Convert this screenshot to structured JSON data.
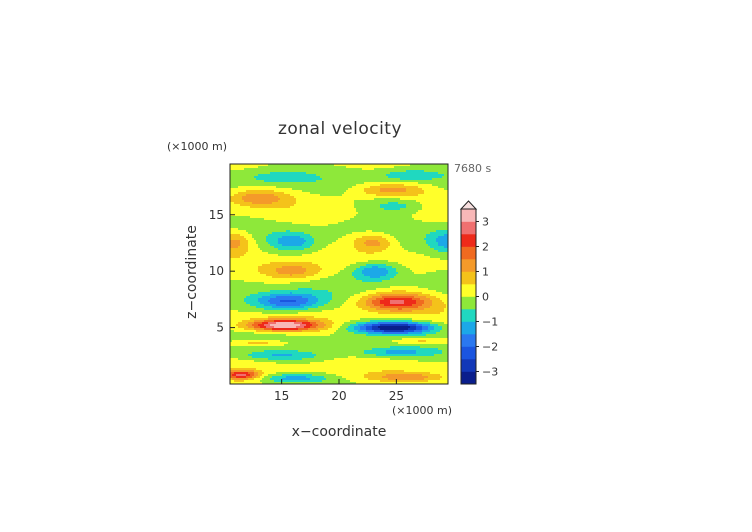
{
  "chart_data": {
    "type": "heatmap",
    "title": "zonal velocity",
    "xlabel": "x−coordinate",
    "ylabel": "z−coordinate",
    "x_unit_label": "(×1000 m)",
    "y_unit_label": "(×1000 m)",
    "time_label": "7680 s",
    "xlim": [
      10.5,
      29.5
    ],
    "ylim": [
      0,
      19.5
    ],
    "xticks": [
      15,
      20,
      25
    ],
    "yticks": [
      5,
      10,
      15
    ],
    "colorbar": {
      "ticks": [
        "3",
        "2",
        "1",
        "0",
        "−1",
        "−2",
        "−3"
      ],
      "range": [
        -3.5,
        3.5
      ],
      "extend": "max",
      "levels": [
        {
          "lo": -3.5,
          "hi": -3.0,
          "color": "#0a1e8c"
        },
        {
          "lo": -3.0,
          "hi": -2.5,
          "color": "#1238b8"
        },
        {
          "lo": -2.5,
          "hi": -2.0,
          "color": "#1a55e0"
        },
        {
          "lo": -2.0,
          "hi": -1.5,
          "color": "#2a78f0"
        },
        {
          "lo": -1.5,
          "hi": -1.0,
          "color": "#1ca8e8"
        },
        {
          "lo": -1.0,
          "hi": -0.5,
          "color": "#20d8c0"
        },
        {
          "lo": -0.5,
          "hi": 0.0,
          "color": "#8ee83a"
        },
        {
          "lo": 0.0,
          "hi": 0.5,
          "color": "#ffff2a"
        },
        {
          "lo": 0.5,
          "hi": 1.0,
          "color": "#f4c21a"
        },
        {
          "lo": 1.0,
          "hi": 1.5,
          "color": "#f49a2a"
        },
        {
          "lo": 1.5,
          "hi": 2.0,
          "color": "#f06a20"
        },
        {
          "lo": 2.0,
          "hi": 2.5,
          "color": "#ee2a1a"
        },
        {
          "lo": 2.5,
          "hi": 3.0,
          "color": "#f07070"
        },
        {
          "lo": 3.0,
          "hi": 3.5,
          "color": "#f8b8b8"
        }
      ]
    },
    "field_components": [
      {
        "cx": 15.2,
        "cz": 5.2,
        "sx": 3.0,
        "sz": 0.5,
        "amp": 3.5
      },
      {
        "cx": 24.8,
        "cz": 5.0,
        "sx": 3.2,
        "sz": 0.5,
        "amp": -3.6
      },
      {
        "cx": 15.5,
        "cz": 7.3,
        "sx": 3.0,
        "sz": 0.8,
        "amp": -2.2
      },
      {
        "cx": 25.0,
        "cz": 7.3,
        "sx": 3.0,
        "sz": 0.8,
        "amp": 2.6
      },
      {
        "cx": 16.0,
        "cz": 10.0,
        "sx": 2.5,
        "sz": 0.8,
        "amp": 1.3
      },
      {
        "cx": 23.2,
        "cz": 10.0,
        "sx": 2.0,
        "sz": 0.8,
        "amp": -1.7
      },
      {
        "cx": 11.0,
        "cz": 12.6,
        "sx": 1.5,
        "sz": 1.0,
        "amp": 1.3
      },
      {
        "cx": 16.0,
        "cz": 12.6,
        "sx": 1.8,
        "sz": 0.8,
        "amp": -1.2
      },
      {
        "cx": 23.0,
        "cz": 12.6,
        "sx": 1.8,
        "sz": 0.8,
        "amp": 1.3
      },
      {
        "cx": 29.5,
        "cz": 12.6,
        "sx": 1.5,
        "sz": 1.0,
        "amp": -1.2
      },
      {
        "cx": 13.0,
        "cz": 16.5,
        "sx": 2.5,
        "sz": 0.7,
        "amp": 1.2
      },
      {
        "cx": 25.0,
        "cz": 15.8,
        "sx": 2.5,
        "sz": 0.7,
        "amp": -0.9
      },
      {
        "cx": 14.5,
        "cz": 18.3,
        "sx": 3.0,
        "sz": 0.6,
        "amp": -0.6
      },
      {
        "cx": 24.5,
        "cz": 17.2,
        "sx": 3.0,
        "sz": 0.6,
        "amp": 1.2
      },
      {
        "cx": 26.0,
        "cz": 18.5,
        "sx": 2.5,
        "sz": 0.5,
        "amp": -0.8
      },
      {
        "cx": 11.5,
        "cz": 0.8,
        "sx": 1.5,
        "sz": 0.4,
        "amp": 2.4
      },
      {
        "cx": 16.0,
        "cz": 0.5,
        "sx": 3.0,
        "sz": 0.4,
        "amp": -1.3
      },
      {
        "cx": 26.0,
        "cz": 0.6,
        "sx": 3.0,
        "sz": 0.4,
        "amp": 1.2
      },
      {
        "cx": 15.0,
        "cz": 2.5,
        "sx": 3.5,
        "sz": 0.4,
        "amp": -0.9
      },
      {
        "cx": 25.0,
        "cz": 2.8,
        "sx": 3.5,
        "sz": 0.4,
        "amp": -1.0
      },
      {
        "cx": 13.0,
        "cz": 3.6,
        "sx": 2.5,
        "sz": 0.3,
        "amp": 1.0
      },
      {
        "cx": 27.0,
        "cz": 3.8,
        "sx": 2.5,
        "sz": 0.3,
        "amp": 0.9
      }
    ]
  }
}
